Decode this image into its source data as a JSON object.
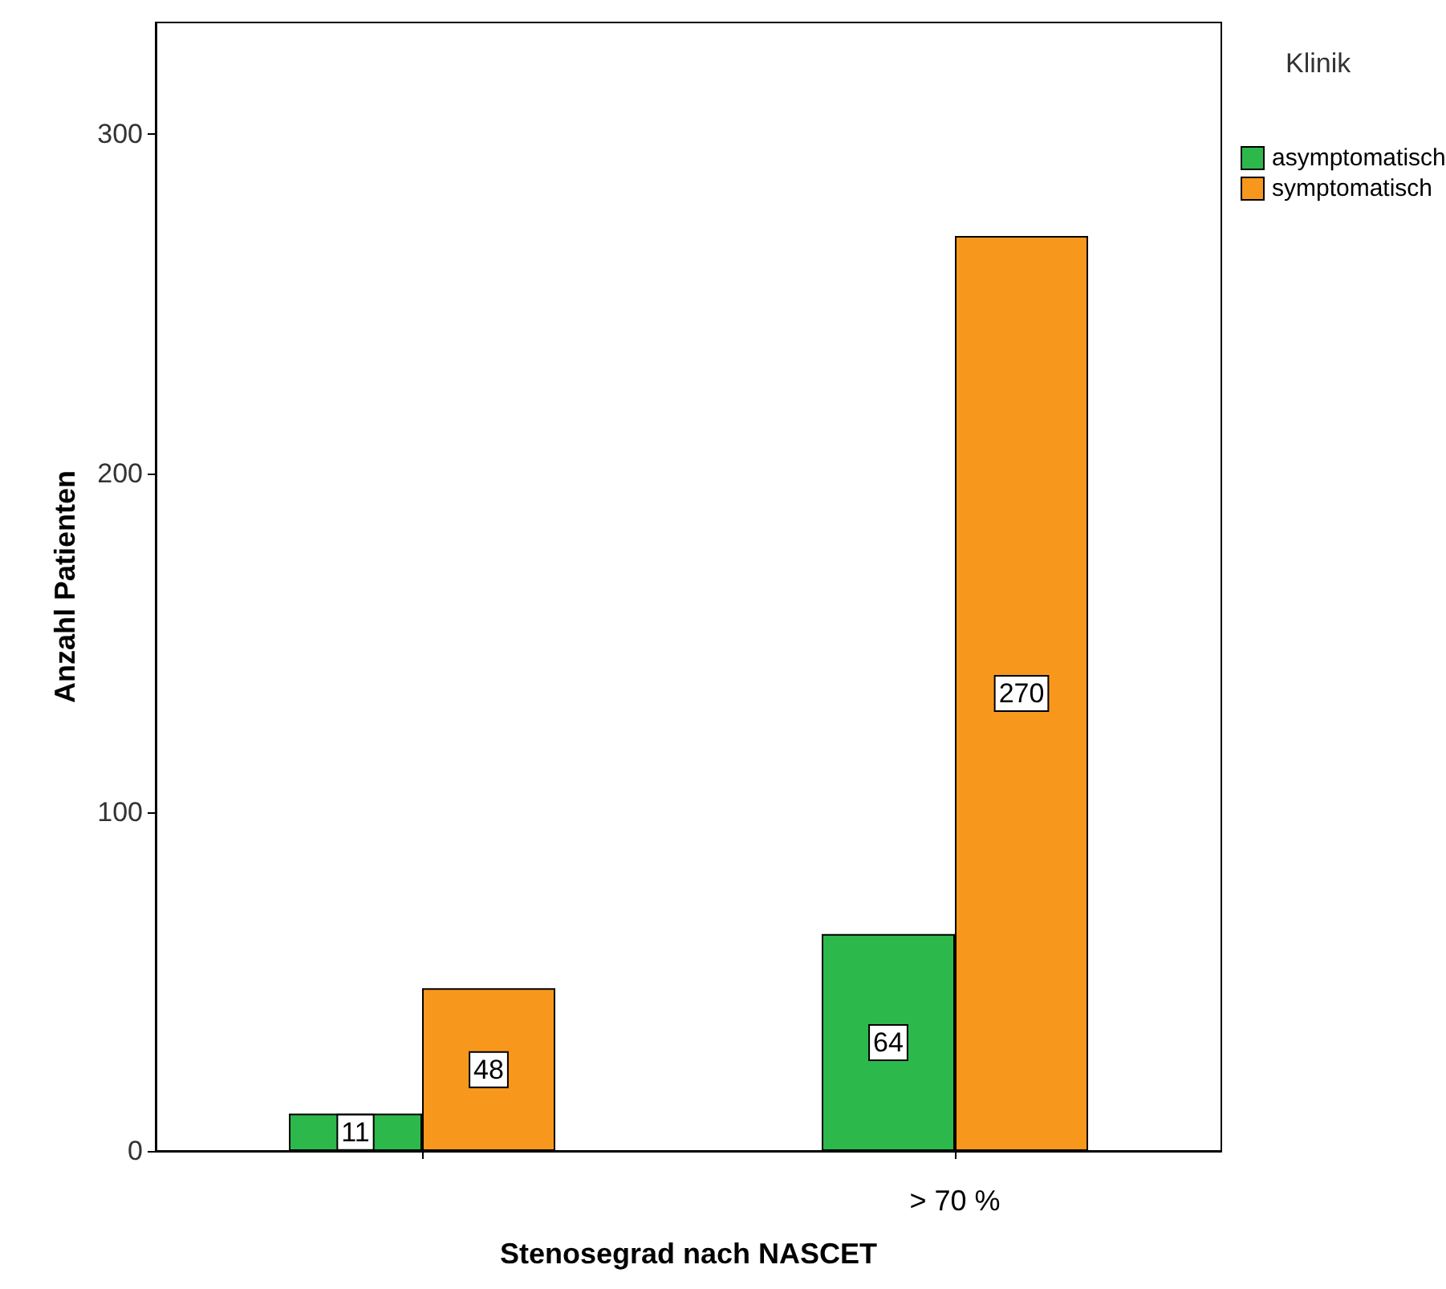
{
  "chart_data": {
    "type": "bar",
    "xlabel": "Stenosegrad nach NASCET",
    "ylabel": "Anzahl Patienten",
    "legend_title": "Klinik",
    "categories": [
      null,
      "> 70 %"
    ],
    "series": [
      {
        "name": "asymptomatisch",
        "color": "#2db84b",
        "values": [
          11,
          64
        ]
      },
      {
        "name": "symptomatisch",
        "color": "#f7981d",
        "values": [
          48,
          270
        ]
      }
    ],
    "ylim": [
      0,
      333
    ],
    "yticks": [
      0,
      100,
      200,
      300
    ],
    "grid": false,
    "legend": "top right",
    "data_labels": true
  }
}
